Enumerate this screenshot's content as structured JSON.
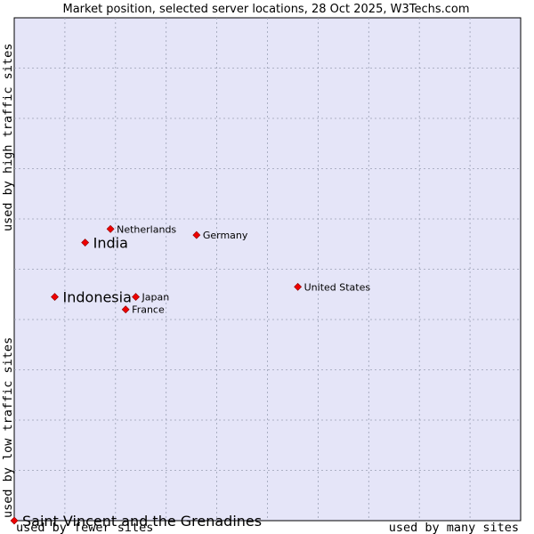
{
  "chart_data": {
    "type": "scatter",
    "title": "Market position, selected server locations, 28 Oct 2025, W3Techs.com",
    "x_axis": {
      "low_label": "used by fewer sites",
      "high_label": "used by many sites",
      "range": [
        0,
        10
      ]
    },
    "y_axis": {
      "low_label": "used by low traffic sites",
      "high_label": "used by high traffic sites",
      "range": [
        0,
        10
      ]
    },
    "grid": true,
    "points": [
      {
        "name": "Netherlands",
        "x": 1.9,
        "y": 5.8,
        "emphasis": false
      },
      {
        "name": "India",
        "x": 1.4,
        "y": 5.53,
        "emphasis": true
      },
      {
        "name": "Germany",
        "x": 3.6,
        "y": 5.68,
        "emphasis": false
      },
      {
        "name": "Indonesia",
        "x": 0.8,
        "y": 4.45,
        "emphasis": true
      },
      {
        "name": "Japan",
        "x": 2.4,
        "y": 4.45,
        "emphasis": false
      },
      {
        "name": "France",
        "x": 2.2,
        "y": 4.2,
        "emphasis": false
      },
      {
        "name": "United States",
        "x": 5.6,
        "y": 4.65,
        "emphasis": false
      },
      {
        "name": "Saint Vincent and the Grenadines",
        "x": 0.0,
        "y": 0.0,
        "emphasis": true
      }
    ]
  },
  "colors": {
    "plot_background": "#e5e5f8",
    "grid": "#9aa0b4",
    "marker": "#ee0000",
    "marker_edge": "#880000"
  }
}
